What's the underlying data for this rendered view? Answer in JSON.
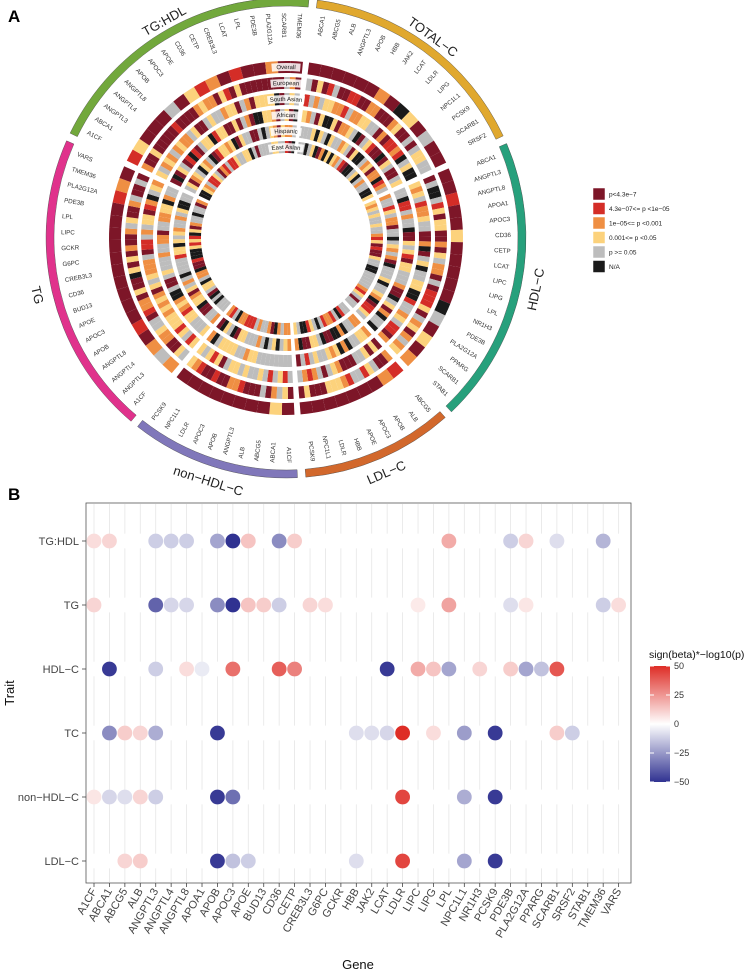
{
  "panel_a": {
    "letter": "A",
    "chart_data": {
      "type": "circos",
      "populations": [
        "Overall",
        "European",
        "South Asian",
        "African",
        "Hispanic",
        "East Asian"
      ],
      "sectors": [
        {
          "name": "TOTAL−C",
          "color": "#e0a82e",
          "genes": [
            "ABCA1",
            "ABCG5",
            "ALB",
            "ANGPTL3",
            "APOB",
            "HBB",
            "JAK2",
            "LCAT",
            "LDLR",
            "LIPG",
            "NPC1L1",
            "PCSK9",
            "SCARB1",
            "SRSF2"
          ]
        },
        {
          "name": "HDL−C",
          "color": "#27a07c",
          "genes": [
            "ABCA1",
            "ANGPTL3",
            "ANGPTL8",
            "APOA1",
            "APOC3",
            "CD36",
            "CETP",
            "LCAT",
            "LIPC",
            "LIPG",
            "LPL",
            "NR1H3",
            "PDE3B",
            "PLA2G12A",
            "PPARG",
            "SCARB1",
            "STAB1"
          ]
        },
        {
          "name": "LDL−C",
          "color": "#d2682c",
          "genes": [
            "ABCG5",
            "ALB",
            "APOB",
            "APOC3",
            "APOE",
            "HBB",
            "LDLR",
            "NPC1L1",
            "PCSK9"
          ]
        },
        {
          "name": "non−HDL−C",
          "color": "#8077ba",
          "genes": [
            "A1CF",
            "ABCA1",
            "ABCG5",
            "ALB",
            "ANGPTL3",
            "APOB",
            "APOC3",
            "LDLR",
            "NPC1L1",
            "PCSK9"
          ]
        },
        {
          "name": "TG",
          "color": "#e0328c",
          "genes": [
            "A1CF",
            "ANGPTL3",
            "ANGPTL4",
            "ANGPTL8",
            "APOB",
            "APOC3",
            "APOE",
            "BUD13",
            "CD36",
            "CREB3L3",
            "G6PC",
            "GCKR",
            "LIPC",
            "LPL",
            "PDE3B",
            "PLA2G12A",
            "TMEM36",
            "VARS"
          ]
        },
        {
          "name": "TG:HDL",
          "color": "#72a83c",
          "genes": [
            "A1CF",
            "ABCA1",
            "ANGPTL3",
            "ANGPTL4",
            "ANGPTL8",
            "APOB",
            "APOC3",
            "APOE",
            "CD36",
            "CETP",
            "CREB3L3",
            "LCAT",
            "LPL",
            "PDE3B",
            "PLA2G12A",
            "SCARB1",
            "TMEM36"
          ]
        }
      ],
      "legend": {
        "placement": "right",
        "entries": [
          {
            "label": "p<4.3e−7",
            "color": "#7d1628"
          },
          {
            "label": "4.3e−07<= p <1e−05",
            "color": "#d42d27"
          },
          {
            "label": "1e−05<= p <0.001",
            "color": "#ef8f43"
          },
          {
            "label": "0.001<= p <0.05",
            "color": "#fcd27c"
          },
          {
            "label": "p >= 0.05",
            "color": "#bdbdbd"
          },
          {
            "label": "N/A",
            "color": "#1a1a1a"
          }
        ]
      }
    }
  },
  "panel_b": {
    "letter": "B",
    "chart_data": {
      "type": "dot-heatmap",
      "xlabel": "Gene",
      "ylabel": "Trait",
      "genes": [
        "A1CF",
        "ABCA1",
        "ABCG5",
        "ALB",
        "ANGPTL3",
        "ANGPTL4",
        "ANGPTL8",
        "APOA1",
        "APOB",
        "APOC3",
        "APOE",
        "BUD13",
        "CD36",
        "CETP",
        "CREB3L3",
        "G6PC",
        "GCKR",
        "HBB",
        "JAK2",
        "LCAT",
        "LDLR",
        "LIPC",
        "LIPG",
        "LPL",
        "NPC1L1",
        "NR1H3",
        "PCSK9",
        "PDE3B",
        "PLA2G12A",
        "PPARG",
        "SCARB1",
        "SRSF2",
        "STAB1",
        "TMEM36",
        "VARS"
      ],
      "traits": [
        "TG:HDL",
        "TG",
        "HDL−C",
        "TC",
        "non−HDL−C",
        "LDL−C"
      ],
      "values": [
        [
          8,
          10,
          0,
          0,
          -12,
          -12,
          -12,
          0,
          -22,
          -52,
          14,
          0,
          -28,
          12,
          0,
          0,
          0,
          0,
          0,
          0,
          0,
          0,
          0,
          20,
          0,
          0,
          0,
          -12,
          10,
          0,
          -8,
          0,
          0,
          -18,
          0
        ],
        [
          10,
          0,
          0,
          0,
          -38,
          -10,
          -10,
          0,
          -28,
          -52,
          14,
          12,
          -12,
          0,
          10,
          8,
          0,
          0,
          0,
          0,
          0,
          5,
          0,
          22,
          0,
          0,
          0,
          -8,
          6,
          0,
          0,
          0,
          0,
          -12,
          8
        ],
        [
          0,
          -48,
          0,
          0,
          -12,
          0,
          8,
          -5,
          0,
          34,
          0,
          0,
          38,
          30,
          0,
          0,
          0,
          0,
          0,
          -48,
          0,
          20,
          14,
          -22,
          0,
          10,
          0,
          12,
          -22,
          -15,
          40,
          0,
          0,
          0,
          0
        ],
        [
          0,
          -28,
          12,
          10,
          -20,
          0,
          0,
          0,
          -48,
          0,
          0,
          0,
          0,
          0,
          0,
          0,
          0,
          -8,
          -8,
          -10,
          50,
          0,
          8,
          0,
          -24,
          0,
          -48,
          0,
          0,
          0,
          12,
          -12,
          0,
          0,
          0
        ],
        [
          6,
          -10,
          -8,
          10,
          -12,
          0,
          0,
          0,
          -48,
          -35,
          0,
          0,
          0,
          0,
          0,
          0,
          0,
          0,
          0,
          0,
          44,
          0,
          0,
          0,
          -20,
          0,
          -48,
          0,
          0,
          0,
          0,
          0,
          0,
          0,
          0
        ],
        [
          0,
          0,
          10,
          12,
          0,
          0,
          0,
          0,
          -48,
          -15,
          -12,
          0,
          0,
          0,
          0,
          0,
          0,
          -8,
          0,
          0,
          44,
          0,
          0,
          0,
          -22,
          0,
          -48,
          0,
          0,
          0,
          0,
          0,
          0,
          0,
          0
        ]
      ],
      "colorbar": {
        "title": "sign(beta)*−log10(p)",
        "min": -50,
        "max": 50,
        "ticks": [
          "50",
          "25",
          "0",
          "−25",
          "−50"
        ]
      }
    }
  }
}
